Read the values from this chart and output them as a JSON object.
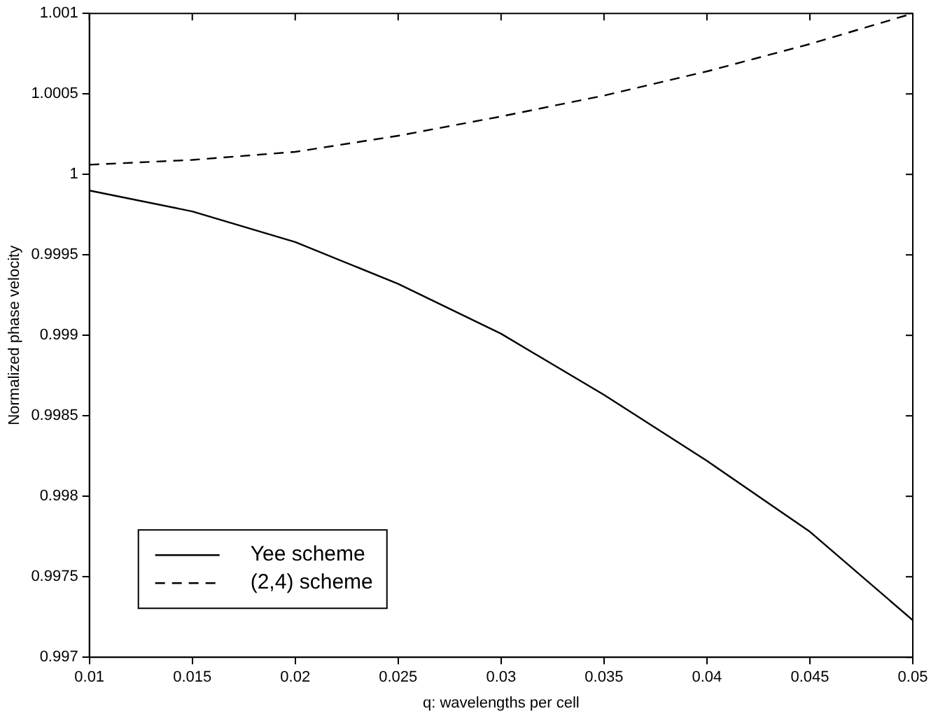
{
  "chart_data": {
    "type": "line",
    "xlabel": "q: wavelengths per cell",
    "ylabel": "Normalized phase velocity",
    "x": [
      0.01,
      0.015,
      0.02,
      0.025,
      0.03,
      0.035,
      0.04,
      0.045,
      0.05
    ],
    "series": [
      {
        "name": "Yee scheme",
        "color": "#000000",
        "line_style": "solid",
        "values": [
          0.9999,
          0.99977,
          0.99958,
          0.99932,
          0.99901,
          0.99863,
          0.99822,
          0.99778,
          0.99723
        ]
      },
      {
        "name": "(2,4) scheme",
        "color": "#000000",
        "line_style": "dashed",
        "values": [
          1.00006,
          1.00009,
          1.00014,
          1.00024,
          1.00036,
          1.00049,
          1.00064,
          1.00081,
          1.001
        ]
      }
    ],
    "xlim": [
      0.01,
      0.05
    ],
    "xticks": [
      0.01,
      0.015,
      0.02,
      0.025,
      0.03,
      0.035,
      0.04,
      0.045,
      0.05
    ],
    "ylim": [
      0.997,
      1.001
    ],
    "yticks": [
      0.997,
      0.9975,
      0.998,
      0.9985,
      0.999,
      0.9995,
      1,
      1.0005,
      1.001
    ],
    "grid": false,
    "legend": "bottom left",
    "marker": "none"
  }
}
